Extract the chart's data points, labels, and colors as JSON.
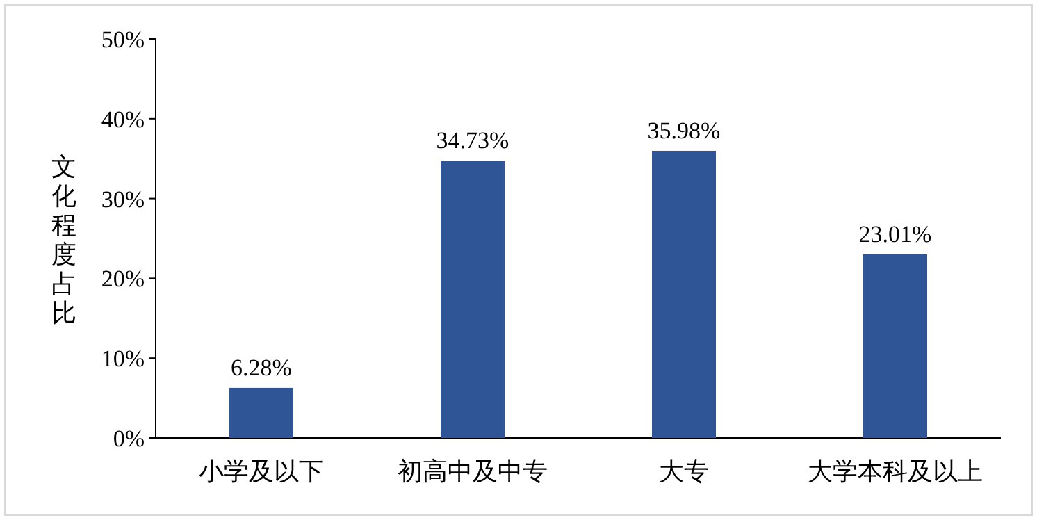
{
  "chart_data": {
    "type": "bar",
    "ylabel": "文化程度占比",
    "categories": [
      "小学及以下",
      "初高中及中专",
      "大专",
      "大学本科及以上"
    ],
    "values": [
      6.28,
      34.73,
      35.98,
      23.01
    ],
    "value_labels": [
      "6.28%",
      "34.73%",
      "35.98%",
      "23.01%"
    ],
    "color": "#2f5597",
    "ylim": [
      0,
      50
    ],
    "yticks": [
      {
        "value": 0,
        "label": "0%"
      },
      {
        "value": 10,
        "label": "10%"
      },
      {
        "value": 20,
        "label": "20%"
      },
      {
        "value": 30,
        "label": "30%"
      },
      {
        "value": 40,
        "label": "40%"
      },
      {
        "value": 50,
        "label": "50%"
      }
    ],
    "grid": false
  }
}
